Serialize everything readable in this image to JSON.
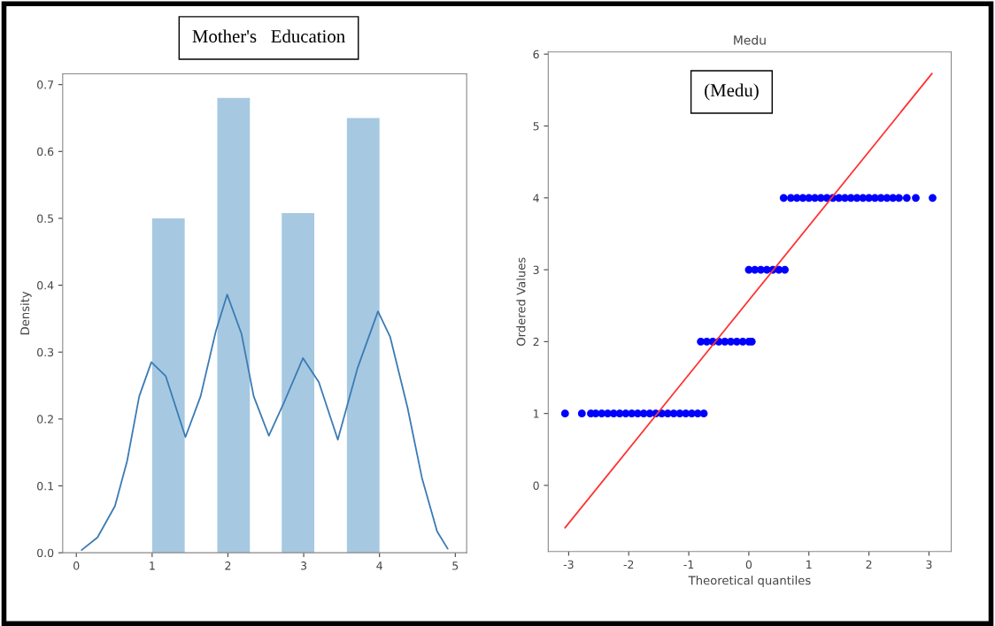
{
  "chart_data": [
    {
      "type": "histogram",
      "ylabel": "Density",
      "annotations": [
        "Mother's   Education"
      ],
      "xlim": [
        -0.18,
        5.15
      ],
      "ylim": [
        0,
        0.716
      ],
      "xticks": [
        0,
        1,
        2,
        3,
        4,
        5
      ],
      "yticks": [
        {
          "value": 0,
          "label": "0.0"
        },
        0.1,
        0.2,
        0.3,
        0.4,
        0.5,
        0.6,
        0.7
      ],
      "grid": false,
      "series": [
        {
          "color": "#a6c9e1",
          "bins": [
            1,
            1.43,
            1.86,
            2.29,
            2.71,
            3.14,
            3.57,
            4
          ],
          "values": [
            0.5,
            0,
            0.68,
            0,
            0.508,
            0,
            0.65
          ]
        },
        {
          "type": "line",
          "color": "#3b7bb5",
          "x": [
            0.07,
            0.28,
            0.51,
            0.67,
            0.83,
            0.99,
            1.18,
            1.44,
            1.64,
            1.84,
            1.99,
            2.18,
            2.34,
            2.54,
            2.73,
            2.99,
            3.2,
            3.45,
            3.71,
            3.98,
            4.14,
            4.37,
            4.56,
            4.76,
            4.9
          ],
          "values": [
            0.004,
            0.023,
            0.07,
            0.137,
            0.234,
            0.285,
            0.264,
            0.173,
            0.234,
            0.331,
            0.386,
            0.327,
            0.234,
            0.175,
            0.222,
            0.291,
            0.255,
            0.169,
            0.276,
            0.361,
            0.323,
            0.217,
            0.112,
            0.032,
            0.006
          ]
        }
      ]
    },
    {
      "type": "scatter",
      "title": "Medu",
      "xlabel": "Theoretical quantiles",
      "ylabel": "Ordered Values",
      "annotations": [
        "(Medu)"
      ],
      "xlim": [
        -3.34,
        3.37
      ],
      "ylim": [
        -0.92,
        6.03
      ],
      "xticks": [
        -3,
        -2,
        -1,
        0,
        1,
        2,
        3
      ],
      "yticks": [
        0,
        1,
        2,
        3,
        4,
        5,
        6
      ],
      "grid": false,
      "series": [
        {
          "marker": "circle",
          "color": "#0000ff",
          "x": [
            -3.06,
            -2.78,
            -2.63,
            -2.55,
            -2.45,
            -2.35,
            -2.25,
            -2.15,
            -2.05,
            -1.95,
            -1.85,
            -1.75,
            -1.65,
            -1.55,
            -1.45,
            -1.35,
            -1.25,
            -1.15,
            -1.05,
            -0.95,
            -0.85,
            -0.75,
            -0.8,
            -0.7,
            -0.6,
            -0.5,
            -0.4,
            -0.3,
            -0.2,
            -0.1,
            0,
            0.05,
            0.0,
            0.1,
            0.2,
            0.3,
            0.4,
            0.5,
            0.6,
            0.58,
            0.7,
            0.8,
            0.9,
            1.0,
            1.1,
            1.2,
            1.3,
            1.4,
            1.5,
            1.6,
            1.7,
            1.8,
            1.9,
            2.0,
            2.1,
            2.2,
            2.3,
            2.4,
            2.5,
            2.63,
            2.78,
            3.06
          ],
          "values": [
            1,
            1,
            1,
            1,
            1,
            1,
            1,
            1,
            1,
            1,
            1,
            1,
            1,
            1,
            1,
            1,
            1,
            1,
            1,
            1,
            1,
            1,
            2,
            2,
            2,
            2,
            2,
            2,
            2,
            2,
            2,
            2,
            3,
            3,
            3,
            3,
            3,
            3,
            3,
            4,
            4,
            4,
            4,
            4,
            4,
            4,
            4,
            4,
            4,
            4,
            4,
            4,
            4,
            4,
            4,
            4,
            4,
            4,
            4,
            4,
            4,
            4
          ]
        },
        {
          "type": "line",
          "color": "#ff3333",
          "x": [
            -3.06,
            3.05
          ],
          "values": [
            -0.59,
            5.73
          ]
        }
      ]
    }
  ]
}
